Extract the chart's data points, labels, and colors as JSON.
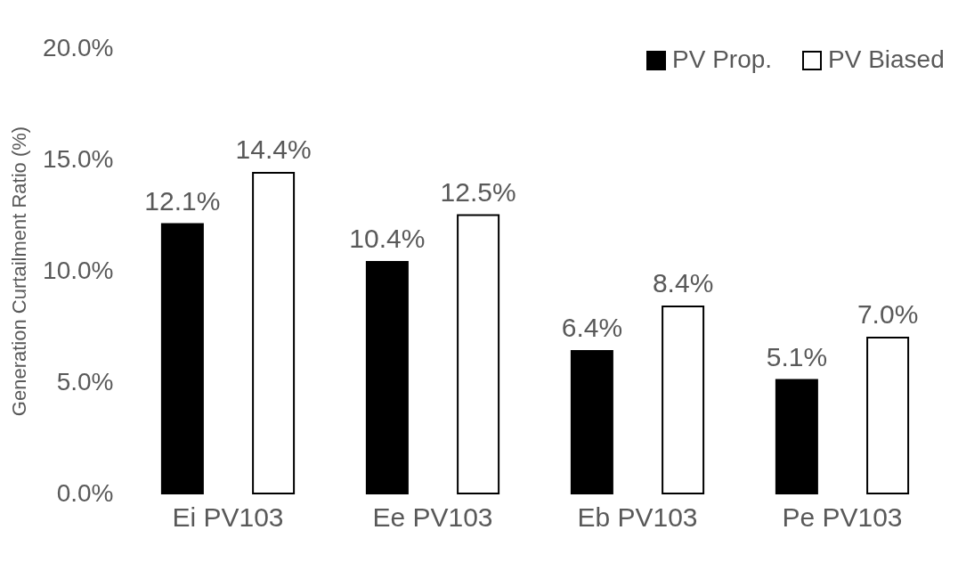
{
  "chart_data": {
    "type": "bar",
    "ylabel": "Generation Curtailment Ratio (%)",
    "categories": [
      "Ei  PV103",
      "Ee  PV103",
      "Eb  PV103",
      "Pe  PV103"
    ],
    "series": [
      {
        "name": "PV Prop.",
        "color": "#000000",
        "values": [
          12.1,
          10.4,
          6.4,
          5.1
        ],
        "value_labels": [
          "12.1%",
          "10.4%",
          "6.4%",
          "5.1%"
        ]
      },
      {
        "name": "PV Biased",
        "color": "#ffffff",
        "values": [
          14.4,
          12.5,
          8.4,
          7.0
        ],
        "value_labels": [
          "14.4%",
          "12.5%",
          "8.4%",
          "7.0%"
        ]
      }
    ],
    "ylim": [
      0,
      20
    ],
    "yticks": [
      {
        "value": 0,
        "label": "0.0%"
      },
      {
        "value": 5,
        "label": "5.0%"
      },
      {
        "value": 10,
        "label": "10.0%"
      },
      {
        "value": 15,
        "label": "15.0%"
      },
      {
        "value": 20,
        "label": "20.0%"
      }
    ],
    "grid": false,
    "legend": "top right"
  }
}
